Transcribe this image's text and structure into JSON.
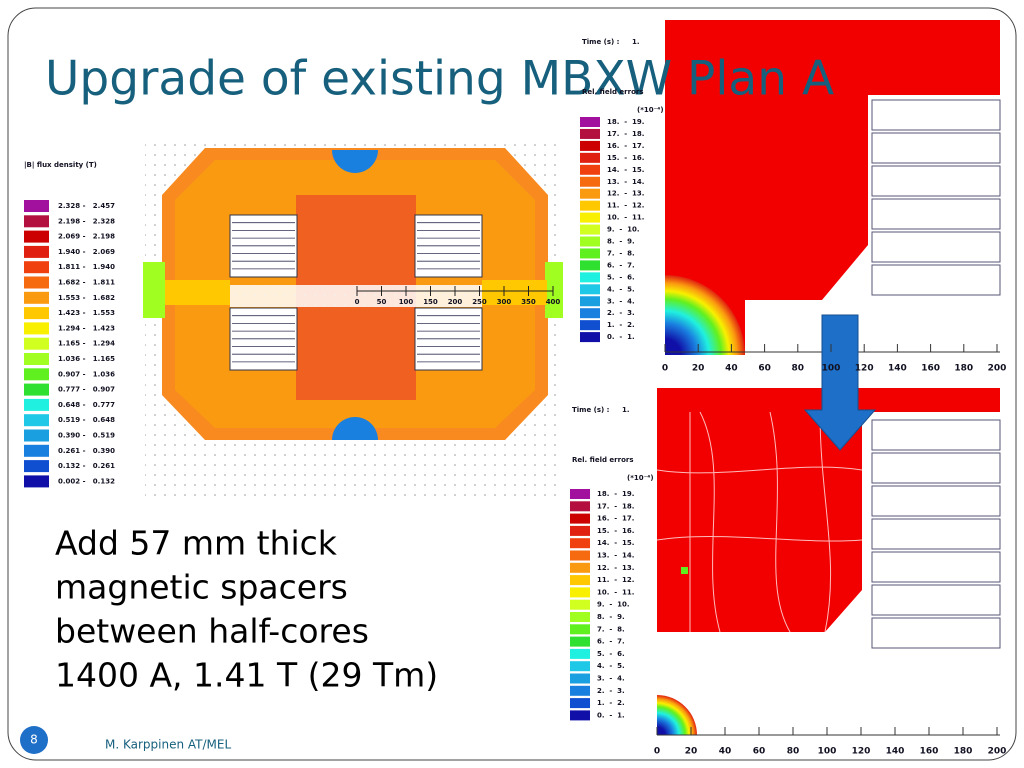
{
  "title": "Upgrade of existing MBXW Plan A",
  "body": [
    "Add 57 mm thick",
    "magnetic spacers",
    "between half-cores",
    "1400 A, 1.41 T (29 Tm)"
  ],
  "footer": {
    "page": "8",
    "author": "M. Karppinen AT/MEL"
  },
  "left_plot": {
    "legend_title": "|B| flux density (T)",
    "legend": [
      {
        "label": "2.328 -   2.457",
        "color": "#a2109e"
      },
      {
        "label": "2.198 -   2.328",
        "color": "#b3103f"
      },
      {
        "label": "2.069 -   2.198",
        "color": "#cc0000"
      },
      {
        "label": "1.940 -   2.069",
        "color": "#e02010"
      },
      {
        "label": "1.811 -   1.940",
        "color": "#f04010"
      },
      {
        "label": "1.682 -   1.811",
        "color": "#f66a10"
      },
      {
        "label": "1.553 -   1.682",
        "color": "#fa9a10"
      },
      {
        "label": "1.423 -   1.553",
        "color": "#ffc800"
      },
      {
        "label": "1.294 -   1.423",
        "color": "#f8f000"
      },
      {
        "label": "1.165 -   1.294",
        "color": "#d0ff20"
      },
      {
        "label": "1.036 -   1.165",
        "color": "#a0ff20"
      },
      {
        "label": "0.907 -   1.036",
        "color": "#60f020"
      },
      {
        "label": "0.777 -   0.907",
        "color": "#30e030"
      },
      {
        "label": "0.648 -   0.777",
        "color": "#20f0e0"
      },
      {
        "label": "0.519 -   0.648",
        "color": "#20c8e8"
      },
      {
        "label": "0.390 -   0.519",
        "color": "#1aa0e0"
      },
      {
        "label": "0.261 -   0.390",
        "color": "#1a80e0"
      },
      {
        "label": "0.132 -   0.261",
        "color": "#1050d0"
      },
      {
        "label": "0.002 -   0.132",
        "color": "#1010a8"
      }
    ],
    "scale": [
      "0",
      "50",
      "100",
      "150",
      "200",
      "250",
      "300",
      "350",
      "400"
    ]
  },
  "top_plot": {
    "time_label": "Time (s) :",
    "time": "1.",
    "legend_title": "Rel. field errors",
    "unit": "(*10⁻⁴)",
    "legend": [
      {
        "label": "18.  -  19.",
        "color": "#a2109e"
      },
      {
        "label": "17.  -  18.",
        "color": "#b3103f"
      },
      {
        "label": "16.  -  17.",
        "color": "#cc0000"
      },
      {
        "label": "15.  -  16.",
        "color": "#e02010"
      },
      {
        "label": "14.  -  15.",
        "color": "#f04010"
      },
      {
        "label": "13.  -  14.",
        "color": "#f66a10"
      },
      {
        "label": "12.  -  13.",
        "color": "#fa9a10"
      },
      {
        "label": "11.  -  12.",
        "color": "#ffc800"
      },
      {
        "label": "10.  -  11.",
        "color": "#f8f000"
      },
      {
        "label": "9.  -  10.",
        "color": "#d0ff20"
      },
      {
        "label": "8.  -  9.",
        "color": "#a0ff20"
      },
      {
        "label": "7.  -  8.",
        "color": "#60f020"
      },
      {
        "label": "6.  -  7.",
        "color": "#30e030"
      },
      {
        "label": "5.  -  6.",
        "color": "#20f0e0"
      },
      {
        "label": "4.  -  5.",
        "color": "#20c8e8"
      },
      {
        "label": "3.  -  4.",
        "color": "#1aa0e0"
      },
      {
        "label": "2.  -  3.",
        "color": "#1a80e0"
      },
      {
        "label": "1.  -  2.",
        "color": "#1050d0"
      },
      {
        "label": "0.  -  1.",
        "color": "#1010a8"
      }
    ],
    "x_ticks": [
      "0",
      "20",
      "40",
      "60",
      "80",
      "100",
      "120",
      "140",
      "160",
      "180",
      "200"
    ]
  },
  "bottom_plot": {
    "time_label": "Time (s) :",
    "time": "1.",
    "legend_title": "Rel. field errors",
    "unit": "(*10⁻⁴)",
    "legend": [
      {
        "label": "18.  -  19.",
        "color": "#a2109e"
      },
      {
        "label": "17.  -  18.",
        "color": "#b3103f"
      },
      {
        "label": "16.  -  17.",
        "color": "#cc0000"
      },
      {
        "label": "15.  -  16.",
        "color": "#e02010"
      },
      {
        "label": "14.  -  15.",
        "color": "#f04010"
      },
      {
        "label": "13.  -  14.",
        "color": "#f66a10"
      },
      {
        "label": "12.  -  13.",
        "color": "#fa9a10"
      },
      {
        "label": "11.  -  12.",
        "color": "#ffc800"
      },
      {
        "label": "10.  -  11.",
        "color": "#f8f000"
      },
      {
        "label": "9.  -  10.",
        "color": "#d0ff20"
      },
      {
        "label": "8.  -  9.",
        "color": "#a0ff20"
      },
      {
        "label": "7.  -  8.",
        "color": "#60f020"
      },
      {
        "label": "6.  -  7.",
        "color": "#30e030"
      },
      {
        "label": "5.  -  6.",
        "color": "#20f0e0"
      },
      {
        "label": "4.  -  5.",
        "color": "#20c8e8"
      },
      {
        "label": "3.  -  4.",
        "color": "#1aa0e0"
      },
      {
        "label": "2.  -  3.",
        "color": "#1a80e0"
      },
      {
        "label": "1.  -  2.",
        "color": "#1050d0"
      },
      {
        "label": "0.  -  1.",
        "color": "#1010a8"
      }
    ],
    "x_ticks": [
      "0",
      "20",
      "40",
      "60",
      "80",
      "100",
      "120",
      "140",
      "160",
      "180",
      "200"
    ]
  }
}
